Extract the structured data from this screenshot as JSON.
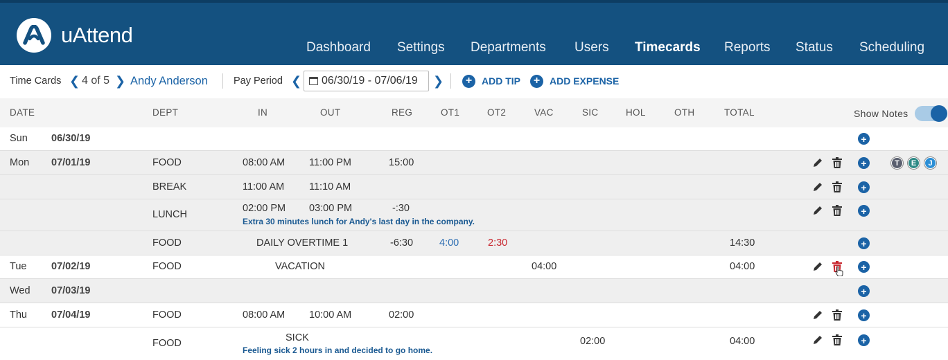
{
  "app": {
    "brand": "uAttend",
    "accent": "#145180",
    "link_color": "#1b63a6"
  },
  "nav": {
    "items": [
      {
        "label": "Dashboard"
      },
      {
        "label": "Settings"
      },
      {
        "label": "Departments"
      },
      {
        "label": "Users"
      },
      {
        "label": "Timecards",
        "active": true
      },
      {
        "label": "Reports"
      },
      {
        "label": "Status"
      },
      {
        "label": "Scheduling"
      }
    ]
  },
  "toolbar": {
    "time_cards_label": "Time Cards",
    "counter": "4 of 5",
    "employee_name": "Andy Anderson",
    "pay_period_label": "Pay Period",
    "pay_period_range": "06/30/19 - 07/06/19",
    "add_tip": "ADD TIP",
    "add_expense": "ADD EXPENSE"
  },
  "table": {
    "columns": {
      "date": "DATE",
      "dept": "DEPT",
      "in": "IN",
      "out": "OUT",
      "reg": "REG",
      "ot1": "OT1",
      "ot2": "OT2",
      "vac": "VAC",
      "sic": "SIC",
      "hol": "HOL",
      "oth": "OTH",
      "total": "TOTAL"
    },
    "show_notes_label": "Show Notes",
    "show_notes_on": true,
    "rows": [
      {
        "day": "Sun",
        "date": "06/30/19"
      },
      {
        "day": "Mon",
        "date": "07/01/19",
        "dept": "FOOD",
        "in": "08:00 AM",
        "out": "11:00 PM",
        "reg": "15:00",
        "badges": [
          "T",
          "E",
          "J"
        ]
      },
      {
        "dept": "BREAK",
        "in": "11:00 AM",
        "out": "11:10 AM"
      },
      {
        "dept": "LUNCH",
        "in": "02:00 PM",
        "out": "03:00 PM",
        "reg": "-:30",
        "note": "Extra 30 minutes lunch for Andy's last day in the company."
      },
      {
        "dept": "FOOD",
        "label": "DAILY OVERTIME 1",
        "reg": "-6:30",
        "ot1": "4:00",
        "ot2": "2:30",
        "total": "14:30"
      },
      {
        "day": "Tue",
        "date": "07/02/19",
        "dept": "FOOD",
        "label": "VACATION",
        "vac": "04:00",
        "total": "04:00"
      },
      {
        "day": "Wed",
        "date": "07/03/19"
      },
      {
        "day": "Thu",
        "date": "07/04/19",
        "dept": "FOOD",
        "in": "08:00 AM",
        "out": "10:00 AM",
        "reg": "02:00"
      },
      {
        "dept": "FOOD",
        "label": "SICK",
        "sic": "02:00",
        "total": "04:00",
        "note": "Feeling sick 2 hours in and decided to go home."
      }
    ]
  },
  "icons": {
    "logo": "uattend-logo-icon",
    "prev": "chevron-left-icon",
    "next": "chevron-right-icon",
    "calendar": "calendar-icon",
    "add": "plus-circle-icon",
    "edit": "pencil-icon",
    "delete": "trash-icon"
  },
  "colors": {
    "ot1": "#2f6fb3",
    "ot2": "#c8272f",
    "delete_hover": "#c8272f"
  }
}
